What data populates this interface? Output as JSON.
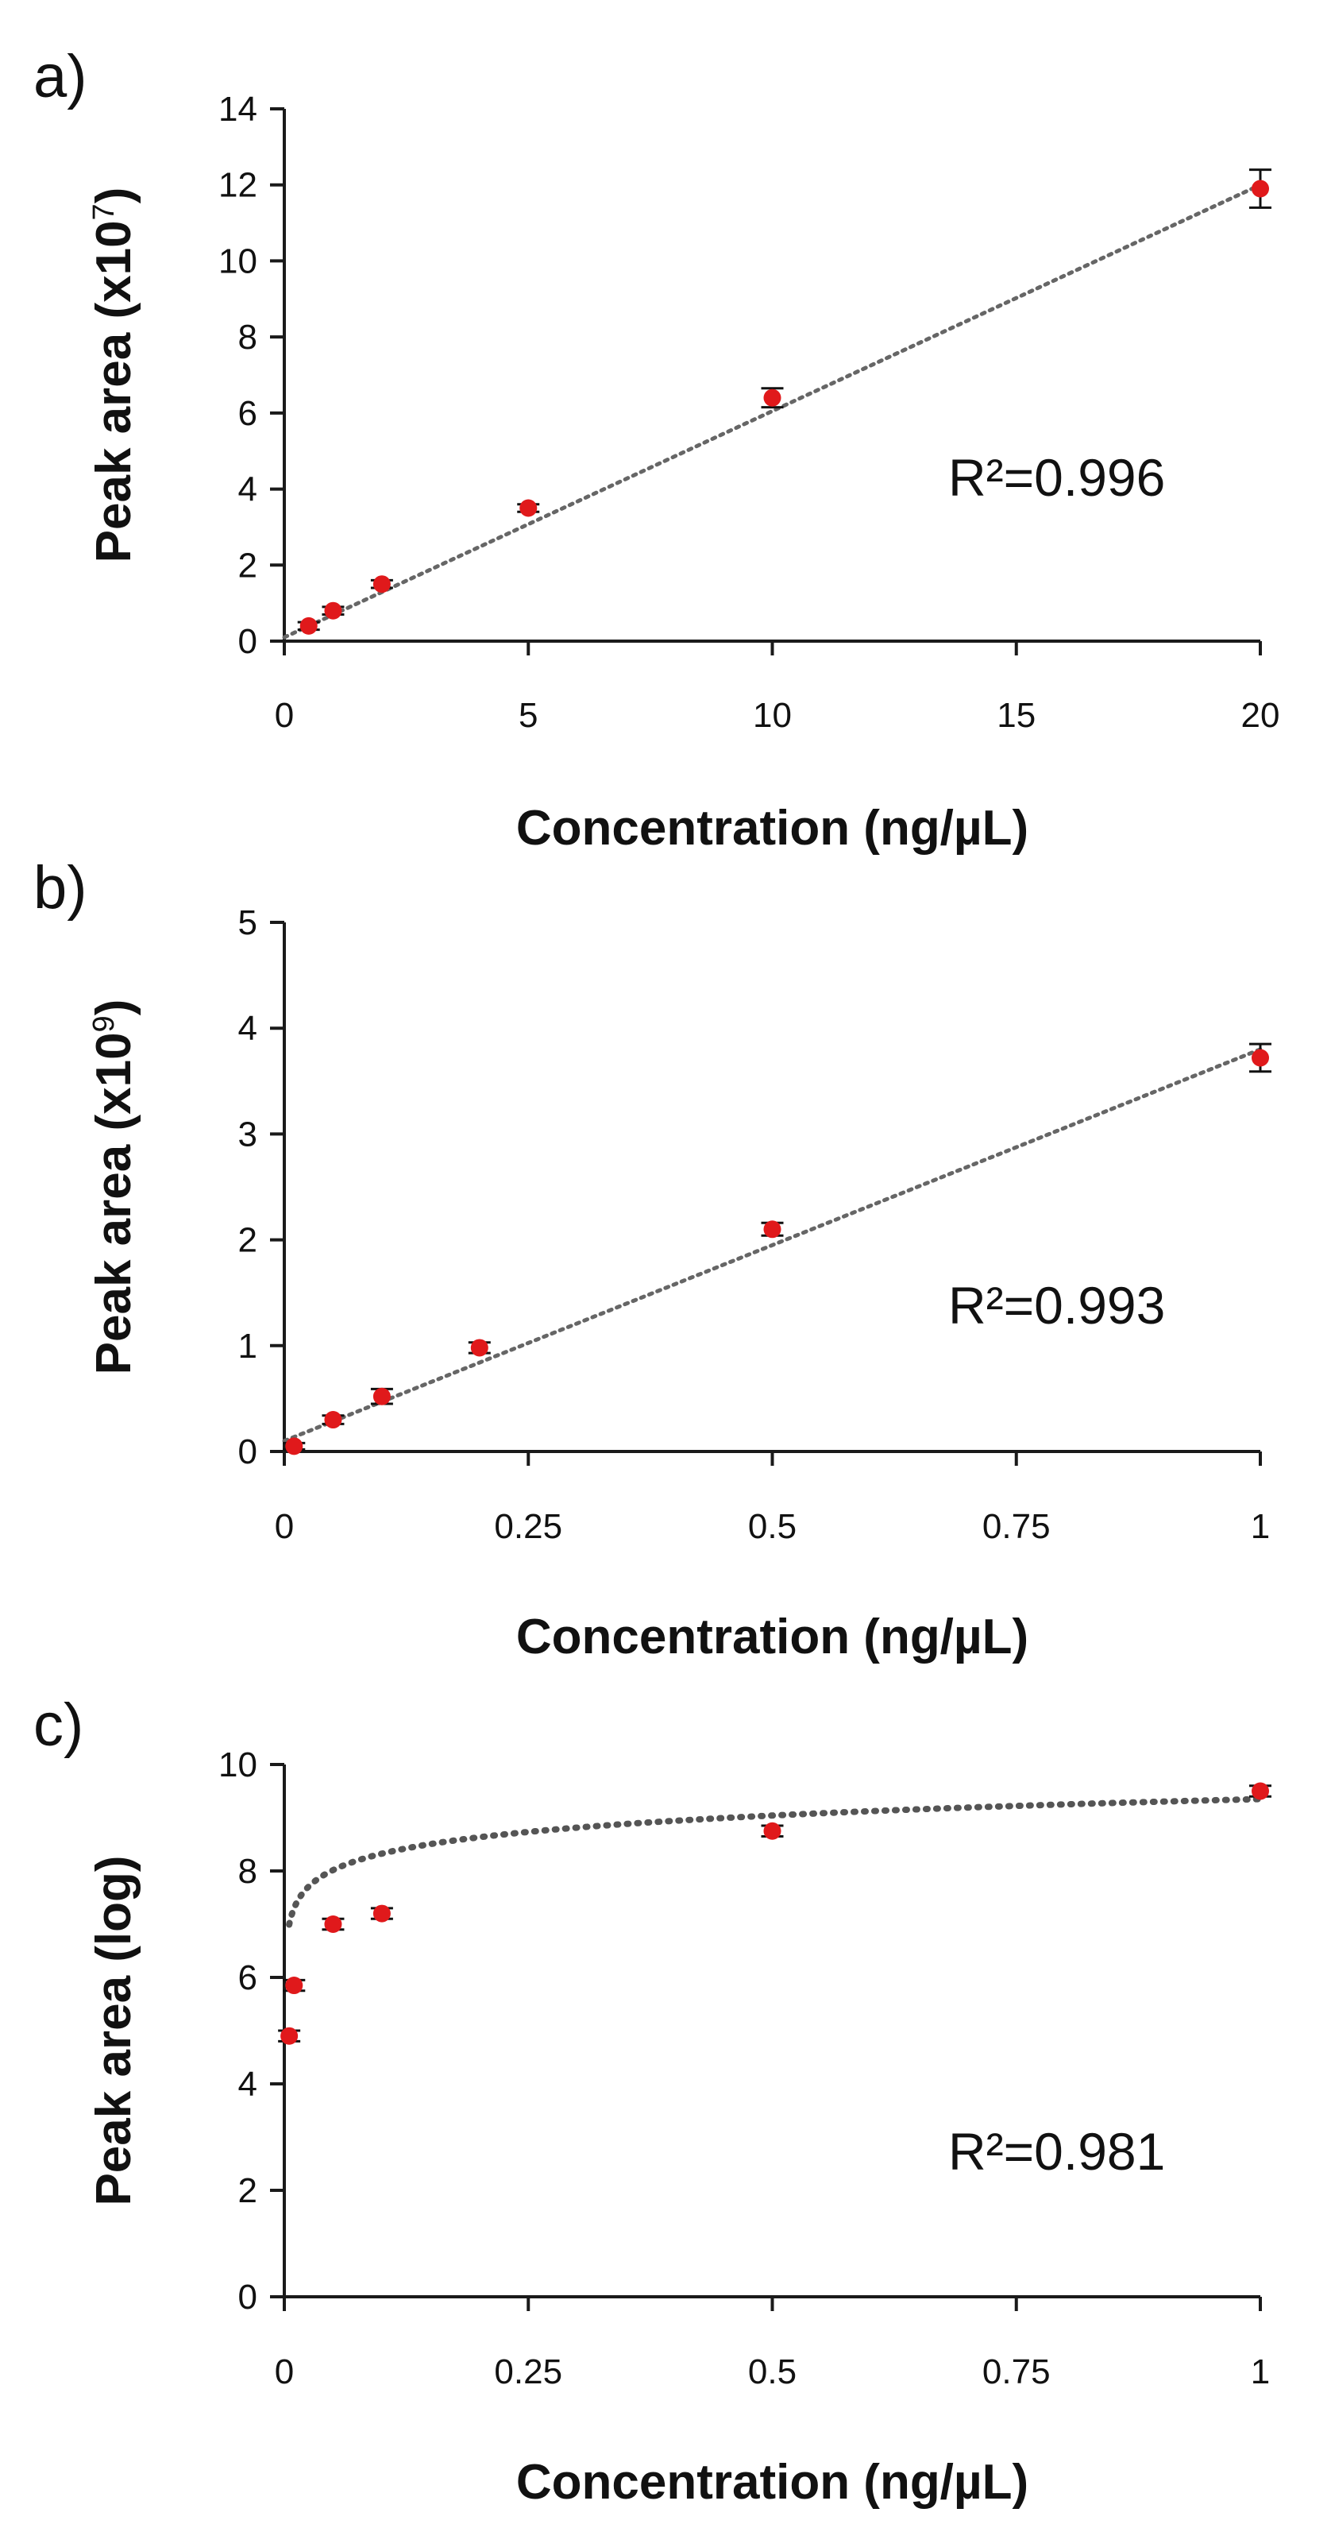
{
  "chart_data": [
    {
      "panel_label": "a)",
      "type": "scatter",
      "title": "",
      "xlabel": "Concentration (ng/µL)",
      "ylabel": "Peak area (x10",
      "ylabel_exponent": "7",
      "ylabel_close": ")",
      "xlim": [
        0,
        20
      ],
      "ylim": [
        0,
        14
      ],
      "xticks": [
        0,
        5,
        10,
        15,
        20
      ],
      "xtick_labels": [
        "0",
        "5",
        "10",
        "15",
        "20"
      ],
      "yticks": [
        0,
        2,
        4,
        6,
        8,
        10,
        12,
        14
      ],
      "ytick_labels": [
        "0",
        "2",
        "4",
        "6",
        "8",
        "10",
        "12",
        "14"
      ],
      "grid": false,
      "annotation": "R²=0.996",
      "marker_color": "#e0191b",
      "trend_color": "#666666",
      "trendline": {
        "type": "linear",
        "from": [
          0,
          0.1
        ],
        "to": [
          20,
          12.0
        ]
      },
      "x": [
        0.5,
        1,
        2,
        5,
        10,
        20
      ],
      "y": [
        0.4,
        0.8,
        1.5,
        3.5,
        6.4,
        11.9
      ],
      "error": [
        0.1,
        0.1,
        0.1,
        0.1,
        0.25,
        0.5
      ]
    },
    {
      "panel_label": "b)",
      "type": "scatter",
      "title": "",
      "xlabel": "Concentration (ng/µL)",
      "ylabel": "Peak area (x10",
      "ylabel_exponent": "9",
      "ylabel_close": ")",
      "xlim": [
        0,
        1
      ],
      "ylim": [
        0,
        5
      ],
      "xticks": [
        0,
        0.25,
        0.5,
        0.75,
        1
      ],
      "xtick_labels": [
        "0",
        "0.25",
        "0.5",
        "0.75",
        "1"
      ],
      "yticks": [
        0,
        1,
        2,
        3,
        4,
        5
      ],
      "ytick_labels": [
        "0",
        "1",
        "2",
        "3",
        "4",
        "5"
      ],
      "grid": false,
      "annotation": "R²=0.993",
      "marker_color": "#e0191b",
      "trend_color": "#666666",
      "trendline": {
        "type": "linear",
        "from": [
          0,
          0.1
        ],
        "to": [
          1,
          3.8
        ]
      },
      "x": [
        0.01,
        0.05,
        0.1,
        0.2,
        0.5,
        1
      ],
      "y": [
        0.05,
        0.3,
        0.52,
        0.98,
        2.1,
        3.72
      ],
      "error": [
        0.03,
        0.04,
        0.07,
        0.05,
        0.06,
        0.13
      ]
    },
    {
      "panel_label": "c)",
      "type": "scatter",
      "title": "",
      "xlabel": "Concentration (ng/µL)",
      "ylabel": "Peak area (log)",
      "ylabel_exponent": "",
      "ylabel_close": "",
      "xlim": [
        0,
        1
      ],
      "ylim": [
        0,
        10
      ],
      "xticks": [
        0,
        0.25,
        0.5,
        0.75,
        1
      ],
      "xtick_labels": [
        "0",
        "0.25",
        "0.5",
        "0.75",
        "1"
      ],
      "yticks": [
        0,
        2,
        4,
        6,
        8,
        10
      ],
      "ytick_labels": [
        "0",
        "2",
        "4",
        "6",
        "8",
        "10"
      ],
      "grid": false,
      "annotation": "R²=0.981",
      "marker_color": "#e0191b",
      "trend_color": "#555555",
      "trendline": {
        "type": "log",
        "a": 9.35,
        "b": 0.445,
        "xmin": 0.005,
        "xmax": 1
      },
      "x": [
        0.005,
        0.01,
        0.05,
        0.1,
        0.5,
        1
      ],
      "y": [
        4.9,
        5.85,
        7.0,
        7.2,
        8.75,
        9.5
      ],
      "error": [
        0.1,
        0.1,
        0.1,
        0.1,
        0.1,
        0.1
      ]
    }
  ]
}
